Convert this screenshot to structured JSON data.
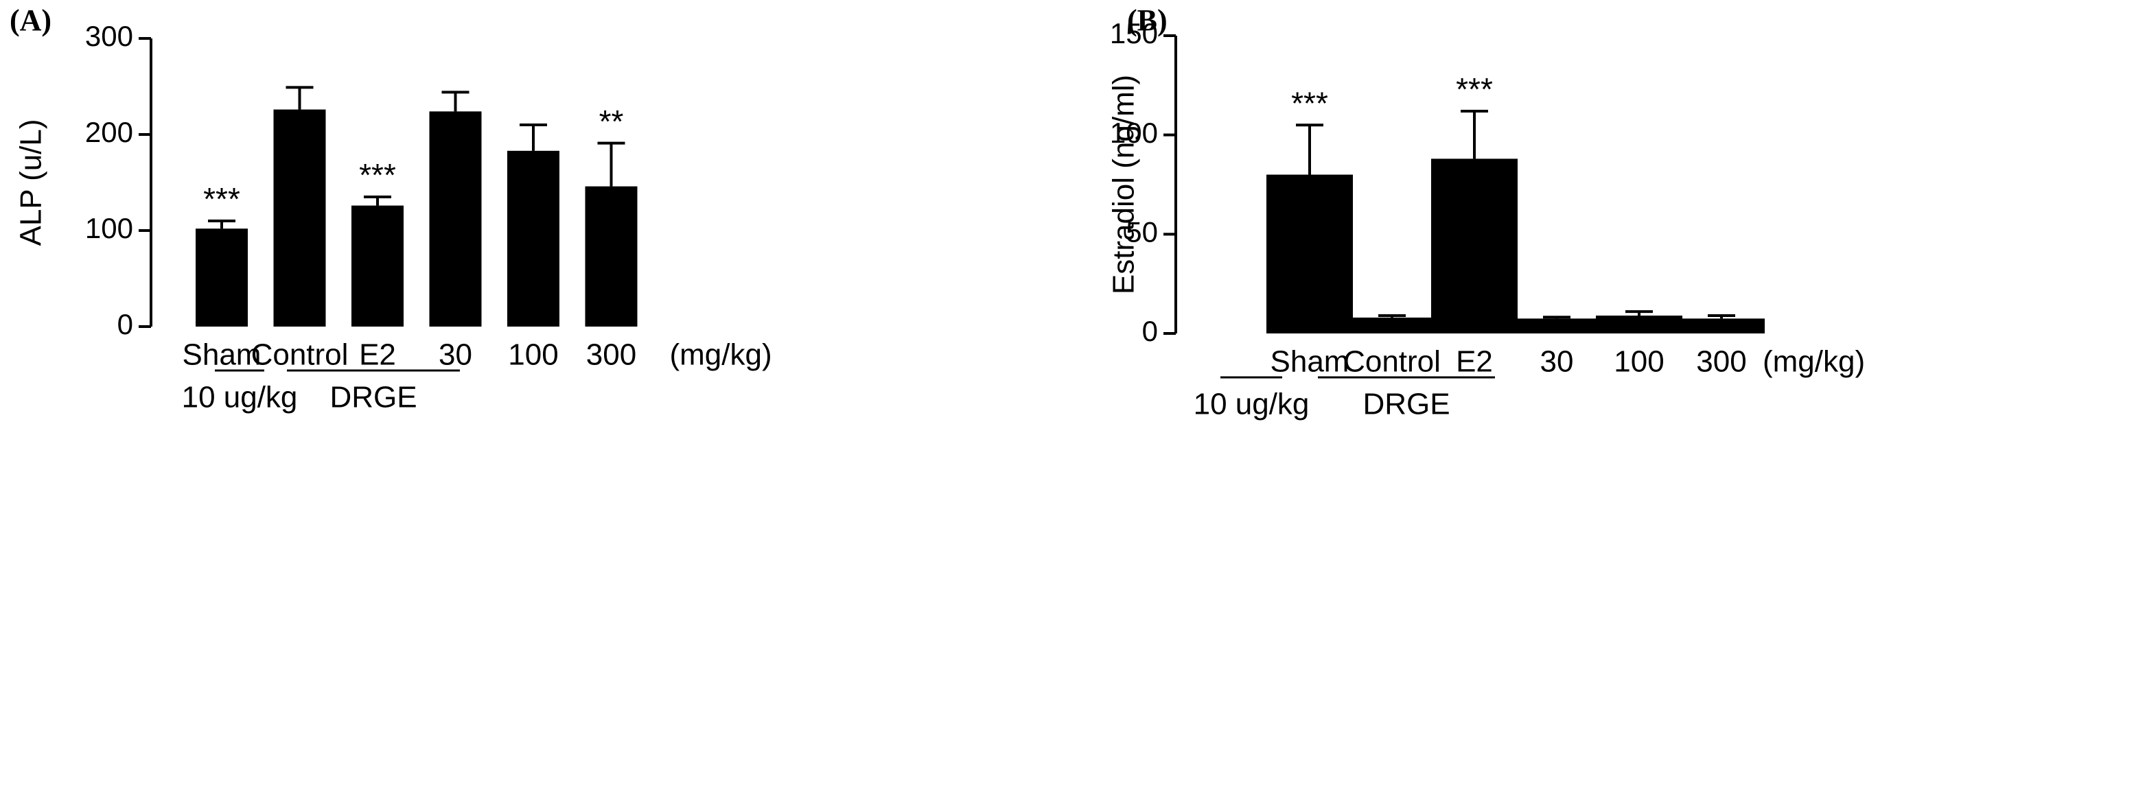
{
  "chart_data": [
    {
      "type": "bar",
      "panel_label": "(A)",
      "ylabel": "ALP (u/L)",
      "ylim": [
        0,
        300
      ],
      "yticks": [
        "0",
        "100",
        "200",
        "300"
      ],
      "categories": [
        "Sham",
        "Control",
        "E2",
        "30",
        "100",
        "300"
      ],
      "unit_label": "(mg/kg)",
      "values": [
        102,
        226,
        126,
        224,
        183,
        146
      ],
      "errors": [
        8,
        23,
        9,
        20,
        27,
        45
      ],
      "significance": [
        "***",
        "",
        "***",
        "",
        "",
        "**"
      ],
      "groups": [
        {
          "label": "10 ug/kg",
          "from": 2,
          "to": 2
        },
        {
          "label": "DRGE",
          "from": 3,
          "to": 5
        }
      ],
      "color": "#000000"
    },
    {
      "type": "bar",
      "panel_label": "(B)",
      "ylabel": "Estradiol (ng/ml)",
      "ylim": [
        0,
        150
      ],
      "yticks": [
        "0",
        "50",
        "100",
        "150"
      ],
      "categories": [
        "Sham",
        "Control",
        "E2",
        "30",
        "100",
        "300"
      ],
      "unit_label": "(mg/kg)",
      "values": [
        80,
        8,
        88,
        7.5,
        9,
        7.5
      ],
      "errors": [
        25,
        1,
        24,
        0.7,
        2,
        1.5
      ],
      "significance": [
        "***",
        "",
        "***",
        "",
        "",
        ""
      ],
      "groups": [
        {
          "label": "10 ug/kg",
          "from": 2,
          "to": 2
        },
        {
          "label": "DRGE",
          "from": 3,
          "to": 5
        }
      ],
      "color": "#000000"
    }
  ]
}
